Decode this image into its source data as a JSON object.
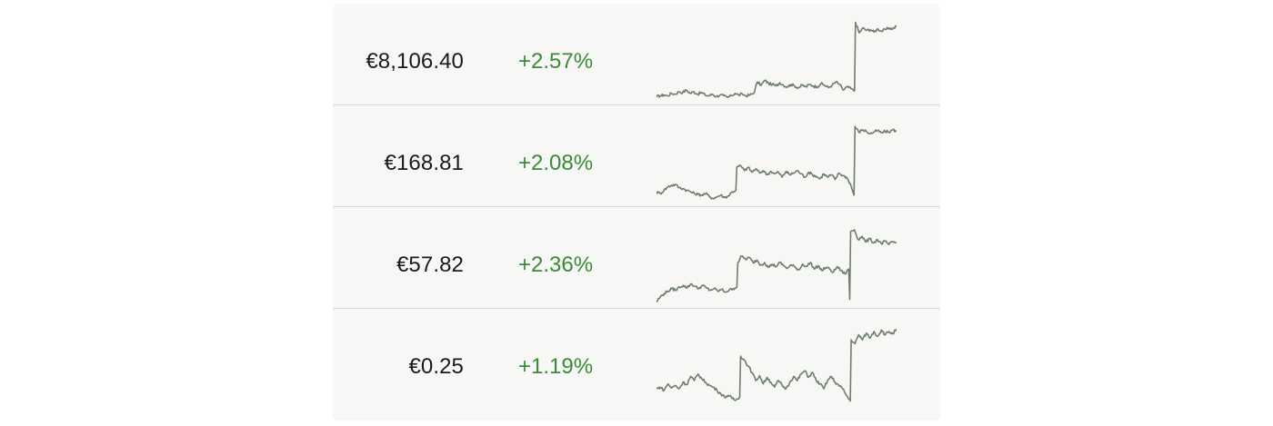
{
  "rows": [
    {
      "price": "€8,106.40",
      "change": "+2.57%",
      "color": "#3a8a3a",
      "sparkline": [
        0.04,
        0.05,
        0.06,
        0.05,
        0.08,
        0.07,
        0.1,
        0.09,
        0.12,
        0.08,
        0.1,
        0.07,
        0.09,
        0.06,
        0.05,
        0.07,
        0.04,
        0.06,
        0.05,
        0.03,
        0.05,
        0.08,
        0.06,
        0.07,
        0.05,
        0.06,
        0.08,
        0.22,
        0.18,
        0.24,
        0.2,
        0.19,
        0.17,
        0.21,
        0.18,
        0.16,
        0.19,
        0.17,
        0.15,
        0.18,
        0.16,
        0.19,
        0.17,
        0.16,
        0.2,
        0.18,
        0.15,
        0.18,
        0.22,
        0.19,
        0.12,
        0.16,
        0.14,
        0.11,
        0.95,
        0.82,
        0.88,
        0.85,
        0.86,
        0.83,
        0.87,
        0.84,
        0.86,
        0.88,
        0.87,
        0.9
      ]
    },
    {
      "price": "€168.81",
      "change": "+2.08%",
      "color": "#3a8a3a",
      "sparkline": [
        0.12,
        0.1,
        0.14,
        0.18,
        0.2,
        0.21,
        0.17,
        0.16,
        0.14,
        0.12,
        0.1,
        0.09,
        0.08,
        0.1,
        0.06,
        0.04,
        0.06,
        0.08,
        0.05,
        0.07,
        0.12,
        0.14,
        0.42,
        0.44,
        0.38,
        0.42,
        0.36,
        0.4,
        0.35,
        0.38,
        0.33,
        0.37,
        0.34,
        0.36,
        0.3,
        0.37,
        0.33,
        0.35,
        0.38,
        0.34,
        0.3,
        0.36,
        0.33,
        0.31,
        0.28,
        0.34,
        0.3,
        0.33,
        0.27,
        0.35,
        0.32,
        0.3,
        0.22,
        0.08,
        0.92,
        0.85,
        0.88,
        0.86,
        0.83,
        0.85,
        0.87,
        0.84,
        0.86,
        0.85,
        0.88,
        0.86
      ]
    },
    {
      "price": "€57.82",
      "change": "+2.36%",
      "color": "#3a8a3a",
      "sparkline": [
        0.02,
        0.08,
        0.12,
        0.15,
        0.18,
        0.16,
        0.2,
        0.22,
        0.19,
        0.24,
        0.21,
        0.18,
        0.22,
        0.19,
        0.16,
        0.18,
        0.15,
        0.17,
        0.14,
        0.16,
        0.18,
        0.2,
        0.5,
        0.58,
        0.54,
        0.56,
        0.5,
        0.53,
        0.47,
        0.5,
        0.44,
        0.48,
        0.45,
        0.5,
        0.46,
        0.43,
        0.47,
        0.44,
        0.41,
        0.48,
        0.45,
        0.5,
        0.42,
        0.46,
        0.4,
        0.44,
        0.42,
        0.38,
        0.45,
        0.4,
        0.36,
        0.42,
        0.05,
        0.88,
        0.9,
        0.78,
        0.82,
        0.75,
        0.79,
        0.74,
        0.78,
        0.73,
        0.76,
        0.72,
        0.75,
        0.74
      ]
    },
    {
      "price": "€0.25",
      "change": "+1.19%",
      "color": "#3a8a3a",
      "sparkline": [
        0.2,
        0.22,
        0.18,
        0.26,
        0.21,
        0.24,
        0.2,
        0.28,
        0.25,
        0.35,
        0.3,
        0.38,
        0.32,
        0.28,
        0.24,
        0.22,
        0.18,
        0.14,
        0.1,
        0.12,
        0.08,
        0.06,
        0.1,
        0.6,
        0.55,
        0.48,
        0.4,
        0.3,
        0.36,
        0.26,
        0.34,
        0.28,
        0.22,
        0.3,
        0.24,
        0.2,
        0.28,
        0.35,
        0.3,
        0.38,
        0.42,
        0.34,
        0.4,
        0.3,
        0.26,
        0.2,
        0.3,
        0.35,
        0.28,
        0.24,
        0.2,
        0.12,
        0.05,
        0.8,
        0.75,
        0.86,
        0.8,
        0.88,
        0.82,
        0.9,
        0.84,
        0.92,
        0.86,
        0.9,
        0.87,
        0.93
      ]
    }
  ]
}
